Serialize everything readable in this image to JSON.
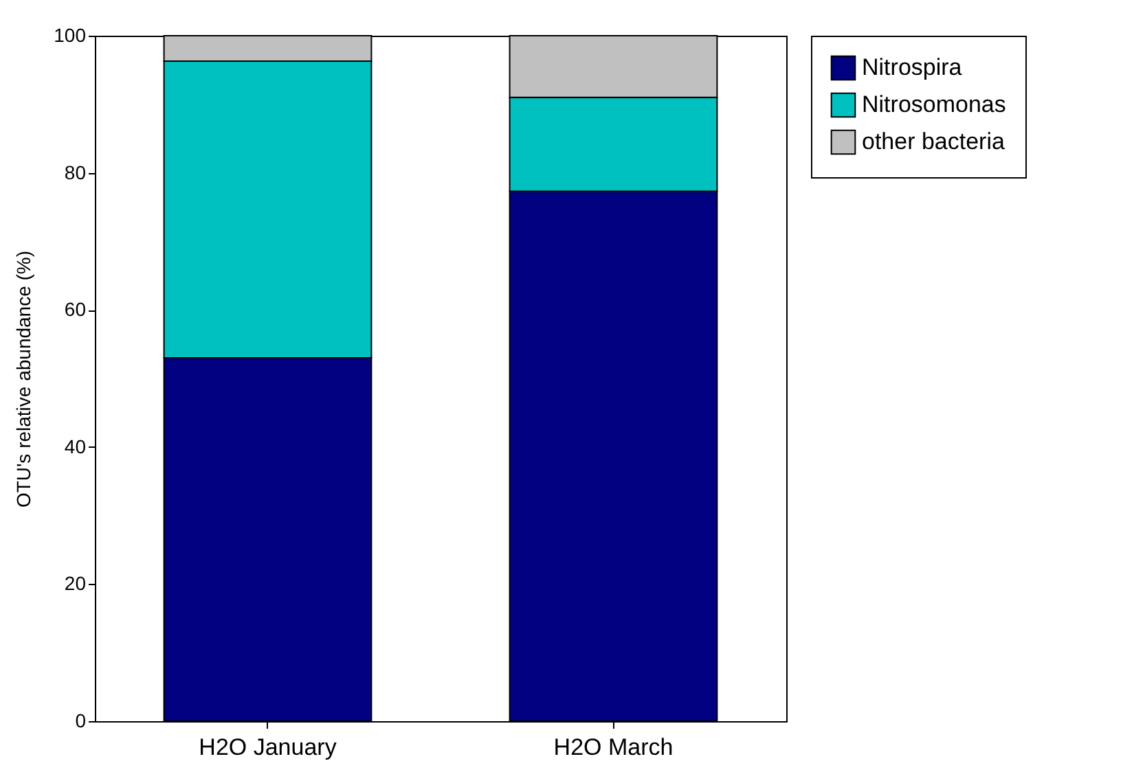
{
  "chart_data": {
    "type": "bar",
    "stacked": true,
    "ylabel": "OTU's relative abundance (%)",
    "categories": [
      "H2O January",
      "H2O March"
    ],
    "series": [
      {
        "name": "Nitrospira",
        "color": "#000080",
        "values": [
          53.0,
          77.3
        ]
      },
      {
        "name": "Nitrosomonas",
        "color": "#00c0c0",
        "values": [
          43.3,
          13.7
        ]
      },
      {
        "name": "other bacteria",
        "color": "#c0c0c0",
        "values": [
          3.7,
          9.0
        ]
      }
    ],
    "ylim": [
      0,
      100
    ],
    "yticks": [
      0,
      20,
      40,
      60,
      80,
      100
    ],
    "grid": false,
    "legend": "top right"
  }
}
